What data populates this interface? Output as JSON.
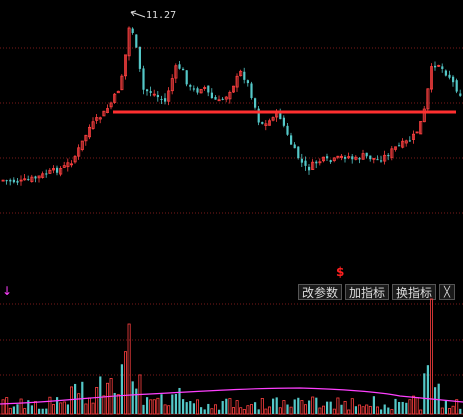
{
  "price_panel": {
    "peak_label": "11.27",
    "resistance_line_color": "#ff3030",
    "up_color": "#ff4040",
    "down_color": "#54c8c8",
    "grid_color": "#7a1a1a"
  },
  "signal_marker": "$",
  "toolbar": {
    "modify_params_label": "改参数",
    "add_indicator_label": "加指标",
    "switch_indicator_label": "换指标",
    "close_label": "╳"
  },
  "volume_panel": {
    "indicator_arrow": "↓",
    "arrow_color": "#ff40ff",
    "ma_color": "#ff40ff"
  }
}
